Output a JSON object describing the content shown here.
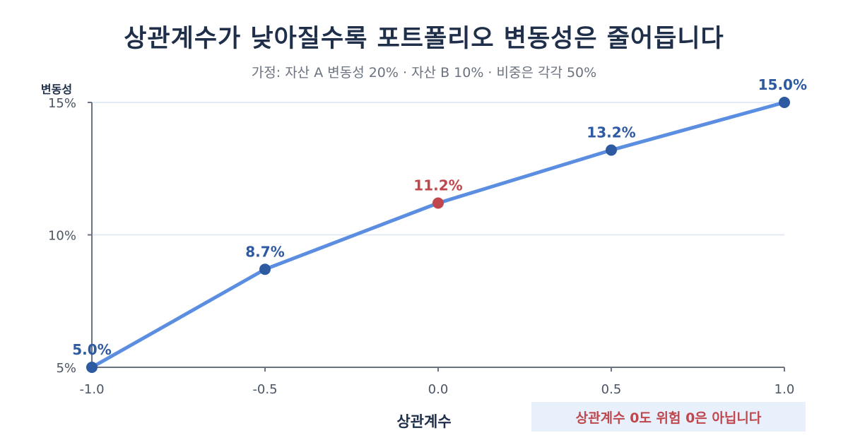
{
  "title": "상관계수가 낮아질수록 포트폴리오 변동성은 줄어듭니다",
  "subtitle": "가정: 자산 A 변동성 20% · 자산 B 10% · 비중은 각각 50%",
  "note": "상관계수 0도 위험 0은 아닙니다",
  "colors": {
    "line": "#5b8ee0",
    "point": "#2d5aa0",
    "highlight": "#c0474e",
    "axis": "#6b7280",
    "grid": "#dbe5f3",
    "text": "#1f2f4a",
    "tick": "#4b5563"
  },
  "chart_data": {
    "type": "line",
    "title": "상관계수가 낮아질수록 포트폴리오 변동성은 줄어듭니다",
    "subtitle": "가정: 자산 A 변동성 20% · 자산 B 10% · 비중은 각각 50%",
    "xlabel": "상관계수",
    "ylabel": "변동성",
    "x": [
      -1.0,
      -0.5,
      0.0,
      0.5,
      1.0
    ],
    "x_tick_labels": [
      "-1.0",
      "-0.5",
      "0.0",
      "0.5",
      "1.0"
    ],
    "y": [
      5.0,
      8.7,
      11.2,
      13.2,
      15.0
    ],
    "data_labels": [
      "5.0%",
      "8.7%",
      "11.2%",
      "13.2%",
      "15.0%"
    ],
    "highlight_index": 2,
    "yticks": [
      5,
      10,
      15
    ],
    "y_tick_labels": [
      "5%",
      "10%",
      "15%"
    ],
    "xlim": [
      -1.0,
      1.0
    ],
    "ylim": [
      5,
      15
    ],
    "grid": "horizontal",
    "legend": "none"
  }
}
